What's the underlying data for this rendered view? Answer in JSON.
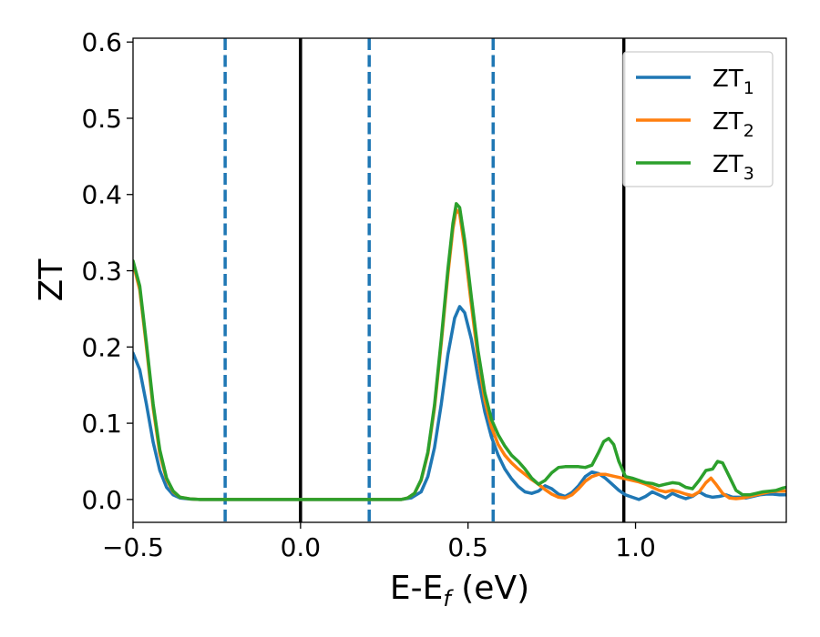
{
  "chart_data": {
    "type": "line",
    "xlabel": {
      "main": "E-E",
      "sub": "f",
      "suffix": " (eV)"
    },
    "ylabel": "ZT",
    "xlim": [
      -0.5,
      1.45
    ],
    "ylim": [
      -0.03,
      0.605
    ],
    "xticks": [
      {
        "value": -0.5,
        "label": "−0.5"
      },
      {
        "value": 0.0,
        "label": "0.0"
      },
      {
        "value": 0.5,
        "label": "0.5"
      },
      {
        "value": 1.0,
        "label": "1.0"
      }
    ],
    "yticks": [
      {
        "value": 0.0,
        "label": "0.0"
      },
      {
        "value": 0.1,
        "label": "0.1"
      },
      {
        "value": 0.2,
        "label": "0.2"
      },
      {
        "value": 0.3,
        "label": "0.3"
      },
      {
        "value": 0.4,
        "label": "0.4"
      },
      {
        "value": 0.5,
        "label": "0.5"
      },
      {
        "value": 0.6,
        "label": "0.6"
      }
    ],
    "grid": false,
    "legend_position": "top-right",
    "vlines": [
      {
        "x": -0.225,
        "style": "dashed",
        "color": "#1f77b4"
      },
      {
        "x": 0.0,
        "style": "solid",
        "color": "#000000"
      },
      {
        "x": 0.205,
        "style": "dashed",
        "color": "#1f77b4"
      },
      {
        "x": 0.575,
        "style": "dashed",
        "color": "#1f77b4"
      },
      {
        "x": 0.965,
        "style": "solid",
        "color": "#000000"
      }
    ],
    "series": [
      {
        "name": "ZT",
        "sub": "1",
        "color": "#1f77b4",
        "points": [
          [
            -0.5,
            0.192
          ],
          [
            -0.48,
            0.17
          ],
          [
            -0.46,
            0.125
          ],
          [
            -0.44,
            0.075
          ],
          [
            -0.42,
            0.038
          ],
          [
            -0.4,
            0.016
          ],
          [
            -0.38,
            0.006
          ],
          [
            -0.36,
            0.002
          ],
          [
            -0.33,
            0.0005
          ],
          [
            -0.3,
            0.0
          ],
          [
            0.3,
            0.0
          ],
          [
            0.33,
            0.002
          ],
          [
            0.36,
            0.01
          ],
          [
            0.38,
            0.03
          ],
          [
            0.4,
            0.068
          ],
          [
            0.42,
            0.125
          ],
          [
            0.44,
            0.19
          ],
          [
            0.46,
            0.238
          ],
          [
            0.475,
            0.253
          ],
          [
            0.49,
            0.245
          ],
          [
            0.51,
            0.21
          ],
          [
            0.53,
            0.16
          ],
          [
            0.55,
            0.115
          ],
          [
            0.57,
            0.082
          ],
          [
            0.59,
            0.058
          ],
          [
            0.61,
            0.04
          ],
          [
            0.63,
            0.027
          ],
          [
            0.65,
            0.017
          ],
          [
            0.67,
            0.01
          ],
          [
            0.69,
            0.008
          ],
          [
            0.71,
            0.011
          ],
          [
            0.73,
            0.018
          ],
          [
            0.75,
            0.014
          ],
          [
            0.77,
            0.007
          ],
          [
            0.79,
            0.004
          ],
          [
            0.81,
            0.009
          ],
          [
            0.83,
            0.018
          ],
          [
            0.85,
            0.03
          ],
          [
            0.87,
            0.036
          ],
          [
            0.89,
            0.034
          ],
          [
            0.91,
            0.028
          ],
          [
            0.93,
            0.02
          ],
          [
            0.95,
            0.012
          ],
          [
            0.97,
            0.006
          ],
          [
            0.99,
            0.003
          ],
          [
            1.01,
            0.0
          ],
          [
            1.03,
            0.004
          ],
          [
            1.05,
            0.01
          ],
          [
            1.07,
            0.006
          ],
          [
            1.09,
            0.002
          ],
          [
            1.11,
            0.008
          ],
          [
            1.13,
            0.004
          ],
          [
            1.15,
            0.001
          ],
          [
            1.17,
            0.004
          ],
          [
            1.19,
            0.01
          ],
          [
            1.21,
            0.005
          ],
          [
            1.23,
            0.003
          ],
          [
            1.25,
            0.004
          ],
          [
            1.27,
            0.006
          ],
          [
            1.29,
            0.003
          ],
          [
            1.31,
            0.003
          ],
          [
            1.33,
            0.002
          ],
          [
            1.35,
            0.004
          ],
          [
            1.37,
            0.006
          ],
          [
            1.39,
            0.007
          ],
          [
            1.41,
            0.007
          ],
          [
            1.43,
            0.006
          ],
          [
            1.45,
            0.006
          ]
        ]
      },
      {
        "name": "ZT",
        "sub": "2",
        "color": "#ff7f0e",
        "points": [
          [
            -0.5,
            0.31
          ],
          [
            -0.48,
            0.275
          ],
          [
            -0.46,
            0.2
          ],
          [
            -0.44,
            0.12
          ],
          [
            -0.42,
            0.06
          ],
          [
            -0.4,
            0.026
          ],
          [
            -0.38,
            0.01
          ],
          [
            -0.36,
            0.003
          ],
          [
            -0.33,
            0.0008
          ],
          [
            -0.3,
            0.0
          ],
          [
            0.3,
            0.0
          ],
          [
            0.32,
            0.002
          ],
          [
            0.34,
            0.008
          ],
          [
            0.36,
            0.025
          ],
          [
            0.38,
            0.06
          ],
          [
            0.4,
            0.12
          ],
          [
            0.42,
            0.205
          ],
          [
            0.44,
            0.295
          ],
          [
            0.455,
            0.355
          ],
          [
            0.465,
            0.38
          ],
          [
            0.475,
            0.375
          ],
          [
            0.49,
            0.33
          ],
          [
            0.51,
            0.255
          ],
          [
            0.53,
            0.185
          ],
          [
            0.55,
            0.13
          ],
          [
            0.57,
            0.095
          ],
          [
            0.59,
            0.072
          ],
          [
            0.61,
            0.058
          ],
          [
            0.63,
            0.048
          ],
          [
            0.65,
            0.04
          ],
          [
            0.67,
            0.033
          ],
          [
            0.69,
            0.026
          ],
          [
            0.71,
            0.02
          ],
          [
            0.73,
            0.013
          ],
          [
            0.75,
            0.007
          ],
          [
            0.77,
            0.003
          ],
          [
            0.79,
            0.002
          ],
          [
            0.81,
            0.006
          ],
          [
            0.83,
            0.014
          ],
          [
            0.85,
            0.024
          ],
          [
            0.87,
            0.03
          ],
          [
            0.89,
            0.033
          ],
          [
            0.91,
            0.033
          ],
          [
            0.93,
            0.031
          ],
          [
            0.95,
            0.029
          ],
          [
            0.97,
            0.027
          ],
          [
            0.99,
            0.025
          ],
          [
            1.01,
            0.023
          ],
          [
            1.03,
            0.02
          ],
          [
            1.05,
            0.016
          ],
          [
            1.07,
            0.012
          ],
          [
            1.09,
            0.01
          ],
          [
            1.11,
            0.012
          ],
          [
            1.13,
            0.01
          ],
          [
            1.15,
            0.007
          ],
          [
            1.17,
            0.005
          ],
          [
            1.19,
            0.01
          ],
          [
            1.21,
            0.022
          ],
          [
            1.225,
            0.028
          ],
          [
            1.24,
            0.02
          ],
          [
            1.26,
            0.008
          ],
          [
            1.28,
            0.002
          ],
          [
            1.3,
            0.001
          ],
          [
            1.32,
            0.002
          ],
          [
            1.34,
            0.004
          ],
          [
            1.36,
            0.006
          ],
          [
            1.38,
            0.008
          ],
          [
            1.4,
            0.01
          ],
          [
            1.42,
            0.011
          ],
          [
            1.45,
            0.011
          ]
        ]
      },
      {
        "name": "ZT",
        "sub": "3",
        "color": "#2ca02c",
        "points": [
          [
            -0.5,
            0.313
          ],
          [
            -0.48,
            0.28
          ],
          [
            -0.46,
            0.205
          ],
          [
            -0.44,
            0.125
          ],
          [
            -0.42,
            0.065
          ],
          [
            -0.4,
            0.028
          ],
          [
            -0.38,
            0.011
          ],
          [
            -0.36,
            0.003
          ],
          [
            -0.33,
            0.0008
          ],
          [
            -0.3,
            0.0
          ],
          [
            0.3,
            0.0
          ],
          [
            0.32,
            0.002
          ],
          [
            0.34,
            0.008
          ],
          [
            0.36,
            0.026
          ],
          [
            0.38,
            0.062
          ],
          [
            0.4,
            0.124
          ],
          [
            0.42,
            0.21
          ],
          [
            0.44,
            0.302
          ],
          [
            0.455,
            0.362
          ],
          [
            0.465,
            0.388
          ],
          [
            0.475,
            0.383
          ],
          [
            0.49,
            0.34
          ],
          [
            0.51,
            0.265
          ],
          [
            0.53,
            0.195
          ],
          [
            0.55,
            0.14
          ],
          [
            0.57,
            0.105
          ],
          [
            0.59,
            0.085
          ],
          [
            0.61,
            0.07
          ],
          [
            0.63,
            0.058
          ],
          [
            0.65,
            0.05
          ],
          [
            0.67,
            0.04
          ],
          [
            0.69,
            0.028
          ],
          [
            0.71,
            0.02
          ],
          [
            0.73,
            0.025
          ],
          [
            0.75,
            0.035
          ],
          [
            0.77,
            0.042
          ],
          [
            0.79,
            0.043
          ],
          [
            0.81,
            0.043
          ],
          [
            0.83,
            0.043
          ],
          [
            0.85,
            0.042
          ],
          [
            0.87,
            0.045
          ],
          [
            0.89,
            0.062
          ],
          [
            0.905,
            0.076
          ],
          [
            0.92,
            0.08
          ],
          [
            0.935,
            0.072
          ],
          [
            0.95,
            0.05
          ],
          [
            0.97,
            0.03
          ],
          [
            0.99,
            0.028
          ],
          [
            1.01,
            0.025
          ],
          [
            1.03,
            0.022
          ],
          [
            1.05,
            0.021
          ],
          [
            1.07,
            0.018
          ],
          [
            1.09,
            0.02
          ],
          [
            1.11,
            0.022
          ],
          [
            1.13,
            0.021
          ],
          [
            1.15,
            0.016
          ],
          [
            1.17,
            0.014
          ],
          [
            1.19,
            0.025
          ],
          [
            1.21,
            0.038
          ],
          [
            1.23,
            0.04
          ],
          [
            1.245,
            0.05
          ],
          [
            1.26,
            0.048
          ],
          [
            1.28,
            0.03
          ],
          [
            1.3,
            0.012
          ],
          [
            1.32,
            0.006
          ],
          [
            1.34,
            0.006
          ],
          [
            1.36,
            0.008
          ],
          [
            1.38,
            0.01
          ],
          [
            1.4,
            0.011
          ],
          [
            1.42,
            0.012
          ],
          [
            1.44,
            0.015
          ],
          [
            1.45,
            0.016
          ]
        ]
      }
    ]
  }
}
